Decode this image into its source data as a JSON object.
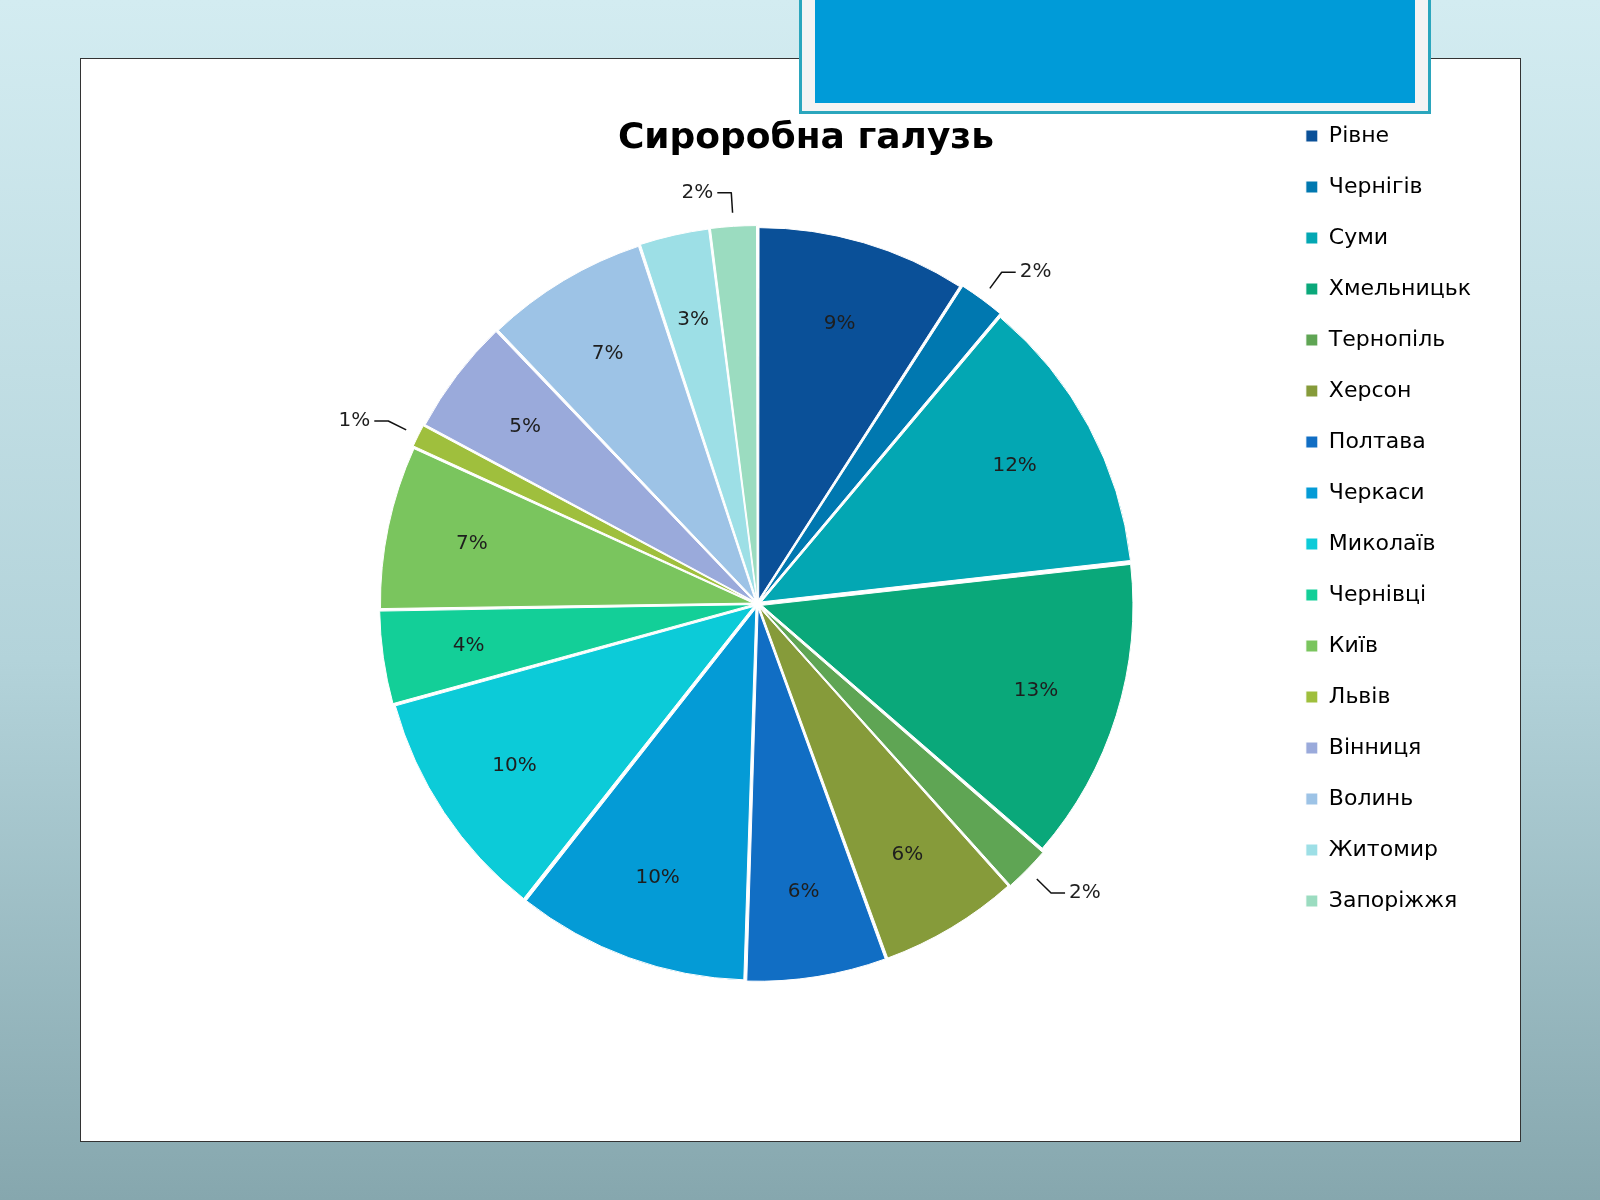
{
  "chart_data": {
    "type": "pie",
    "title": "Сироробна галузь",
    "categories": [
      "Рівне",
      "Чернігів",
      "Суми",
      "Хмельницьк",
      "Тернопіль",
      "Херсон",
      "Полтава",
      "Черкаси",
      "Миколаїв",
      "Чернівці",
      "Київ",
      "Львів",
      "Вінниця",
      "Волинь",
      "Житомир",
      "Запоріжжя"
    ],
    "values": [
      9,
      2,
      12,
      13,
      2,
      6,
      6,
      10,
      10,
      4,
      7,
      1,
      5,
      7,
      3,
      2
    ],
    "colors": [
      "#0a5098",
      "#0078b0",
      "#03a7b3",
      "#0aa87a",
      "#5fa554",
      "#869b3a",
      "#116ec4",
      "#049bd6",
      "#0ccbd8",
      "#13cf98",
      "#7ac55e",
      "#9fbf3d",
      "#9aaadb",
      "#9dc3e6",
      "#9ddfe6",
      "#9bdcc0"
    ],
    "value_labels": [
      "9%",
      "2%",
      "12%",
      "13%",
      "2%",
      "6%",
      "6%",
      "10%",
      "10%",
      "4%",
      "7%",
      "1%",
      "5%",
      "7%",
      "3%",
      "2%"
    ],
    "legend": "top right"
  }
}
